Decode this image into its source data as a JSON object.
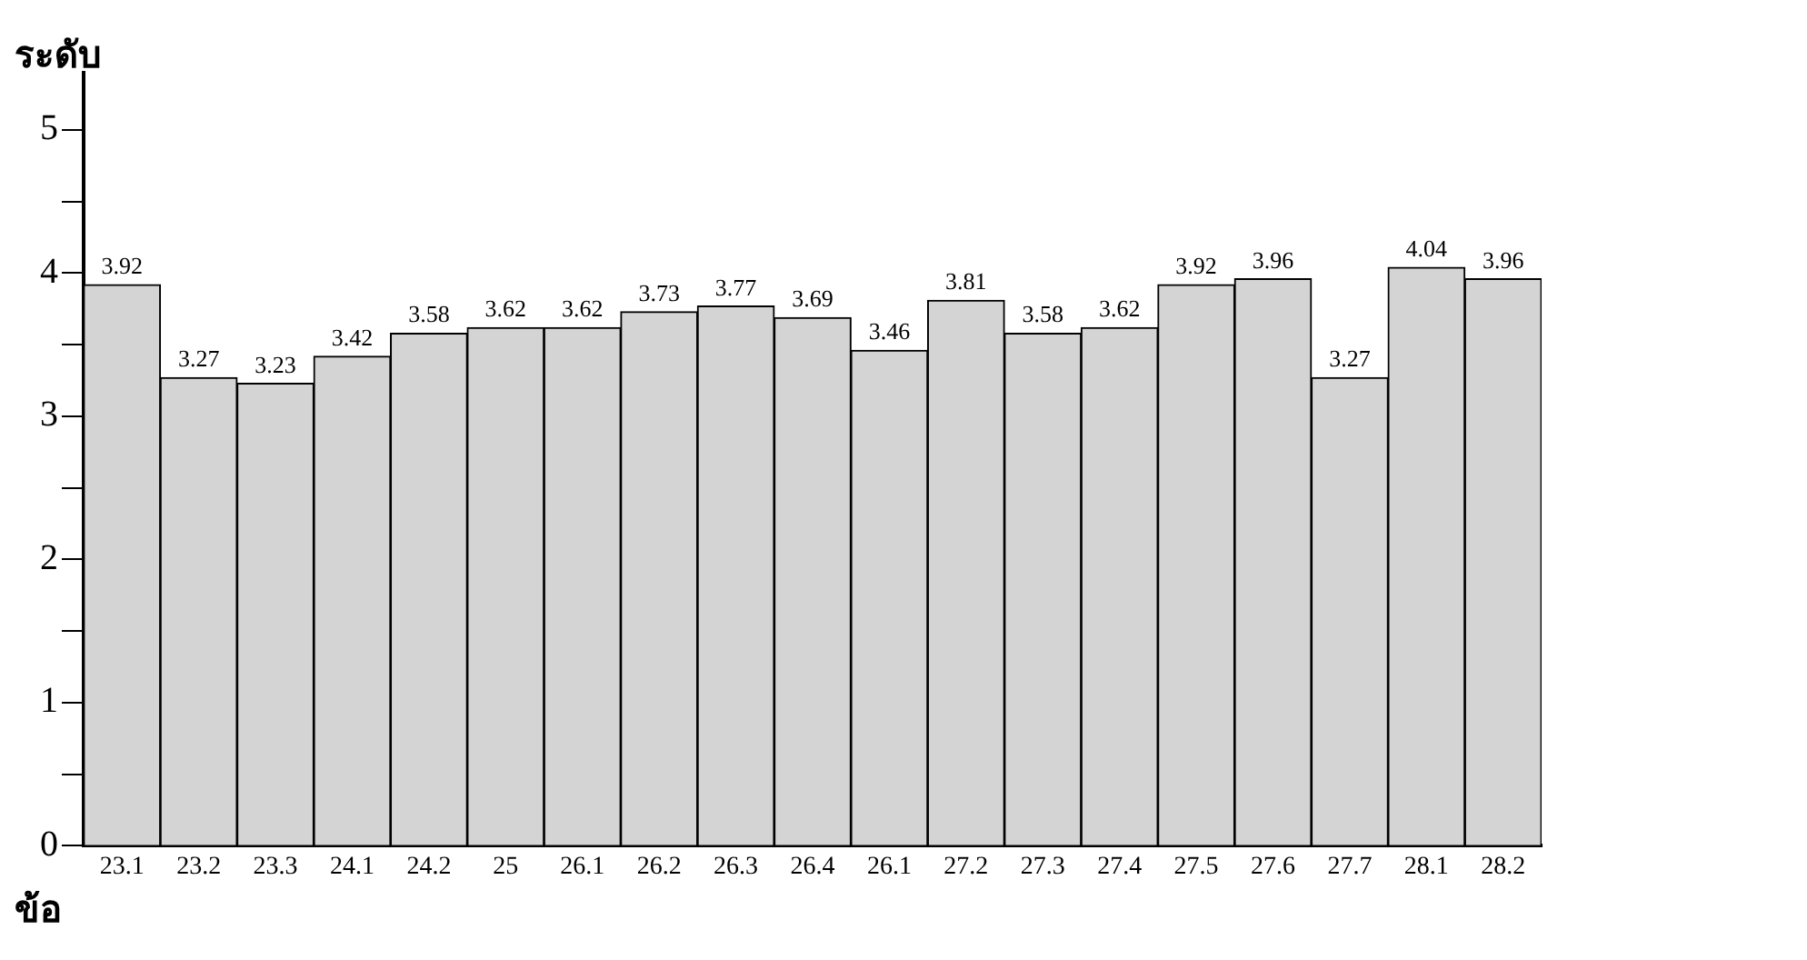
{
  "chart_data": {
    "type": "bar",
    "ylabel": "ระดับ",
    "xlabel": "ข้อ",
    "categories": [
      "23.1",
      "23.2",
      "23.3",
      "24.1",
      "24.2",
      "25",
      "26.1",
      "26.2",
      "26.3",
      "26.4",
      "26.1",
      "27.2",
      "27.3",
      "27.4",
      "27.5",
      "27.6",
      "27.7",
      "28.1",
      "28.2"
    ],
    "values": [
      3.92,
      3.27,
      3.23,
      3.42,
      3.58,
      3.62,
      3.62,
      3.73,
      3.77,
      3.69,
      3.46,
      3.81,
      3.58,
      3.62,
      3.92,
      3.96,
      3.27,
      4.04,
      3.96
    ],
    "color": "#d4d4d4",
    "ylim": [
      0,
      5.4
    ],
    "yticks": [
      0,
      {
        "value": 0.5,
        "label": null
      },
      1,
      {
        "value": 1.5,
        "label": null
      },
      2,
      {
        "value": 2.5,
        "label": null
      },
      3,
      {
        "value": 3.5,
        "label": null
      },
      4,
      {
        "value": 4.5,
        "label": null
      },
      5
    ],
    "data_labels": true,
    "grid": false,
    "legend": false
  }
}
